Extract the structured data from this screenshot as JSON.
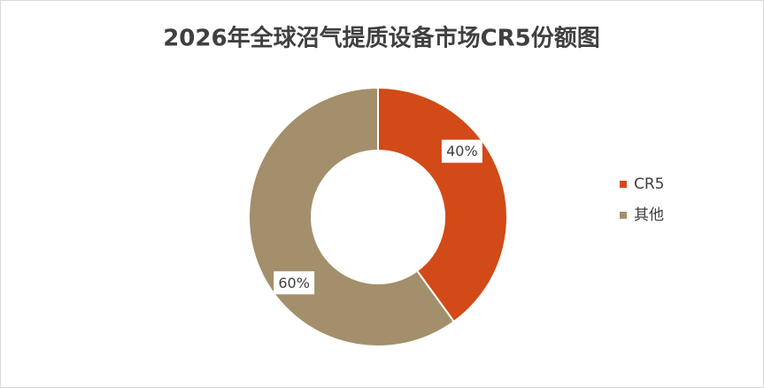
{
  "chart_data": {
    "type": "pie",
    "title": "2026年全球沼气提质设备市场CR5份额图",
    "categories": [
      "CR5",
      "其他"
    ],
    "values": [
      40,
      60
    ],
    "value_labels": [
      "40%",
      "60%"
    ],
    "colors": [
      "#d24a18",
      "#a38f6b"
    ],
    "legend": "right"
  }
}
